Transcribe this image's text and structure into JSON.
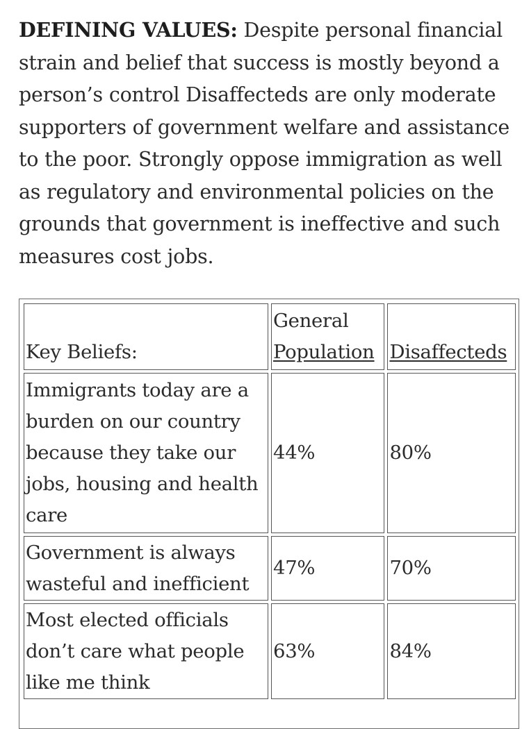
{
  "intro": {
    "lead": "DEFINING VALUES:",
    "body": " Despite personal financial strain  and belief that success is mostly beyond a person’s control  Disaffecteds are only moderate supporters of government welfare and assistance to the poor. Strongly oppose immigration as well as regulatory and environmental policies on the grounds that government is ineffective and such measures cost jobs."
  },
  "table": {
    "header": {
      "key": "Key Beliefs:",
      "col1_line1": "General",
      "col1_line2": "Population",
      "col2": "Disaffecteds"
    },
    "rows": [
      {
        "belief": "Immigrants today are a burden on our country because they take our jobs, housing and health care",
        "general": "44%",
        "disaffecteds": "80%"
      },
      {
        "belief": "Government is always wasteful and inefficient",
        "general": "47%",
        "disaffecteds": "70%"
      },
      {
        "belief": "Most elected officials don’t care what people like me think",
        "general": "63%",
        "disaffecteds": "84%"
      }
    ]
  }
}
